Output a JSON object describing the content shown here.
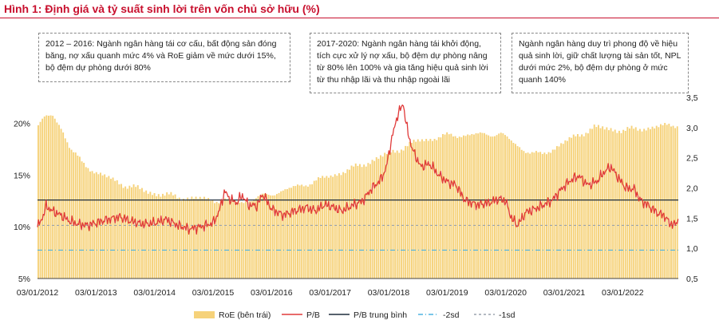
{
  "title": "Hình 1: Định giá và tỷ suất sinh lời trên vốn chủ sở hữu (%)",
  "notes": [
    "2012 – 2016: Ngành ngân hàng tái cơ cấu, bất động sản đóng băng, nợ xấu quanh mức 4% và RoE giảm về mức dưới 15%, bộ đệm dự phòng dưới 80%",
    "2017-2020: Ngành ngân hàng tái khởi động, tích cực xử lý nợ xấu, bộ đệm dự phòng nâng từ 80% lên 100% và gia tăng hiệu quả sinh lời từ thu nhập lãi và thu nhập ngoài lãi",
    "Ngành ngân hàng duy trì phong độ về hiệu quả sinh lời, giữ chất lượng tài sản tốt, NPL dưới mức 2%, bộ đệm dự phòng ở mức quanh 140%"
  ],
  "colors": {
    "roe": "#f6d27a",
    "pb": "#e03a3a",
    "avg": "#1f2d3d",
    "sd2": "#4fb3e0",
    "sd1": "#9aa3ad"
  },
  "chart_data": {
    "type": "bar",
    "x_ticks": [
      "03/01/2012",
      "03/01/2013",
      "03/01/2014",
      "03/01/2015",
      "03/01/2016",
      "03/01/2017",
      "03/01/2018",
      "03/01/2019",
      "03/01/2020",
      "03/01/2021",
      "03/01/2022"
    ],
    "left_axis": {
      "ticks": [
        "5%",
        "10%",
        "15%",
        "20%"
      ],
      "range": [
        5,
        22.5
      ]
    },
    "right_axis": {
      "ticks": [
        "0,5",
        "1,0",
        "1,5",
        "2,0",
        "2,5",
        "3,0",
        "3,5"
      ],
      "range": [
        0.5,
        3.5
      ]
    },
    "t_range": [
      2012.0,
      2022.95
    ],
    "roe": [
      [
        2012.0,
        19.8
      ],
      [
        2012.12,
        20.5
      ],
      [
        2012.25,
        20.8
      ],
      [
        2012.4,
        19.5
      ],
      [
        2012.55,
        17.5
      ],
      [
        2012.75,
        16.2
      ],
      [
        2013.0,
        15.2
      ],
      [
        2013.25,
        14.6
      ],
      [
        2013.5,
        14.0
      ],
      [
        2013.75,
        13.6
      ],
      [
        2014.0,
        13.2
      ],
      [
        2014.5,
        12.8
      ],
      [
        2015.0,
        12.6
      ],
      [
        2015.5,
        12.4
      ],
      [
        2016.0,
        13.2
      ],
      [
        2016.5,
        14.0
      ],
      [
        2017.0,
        14.9
      ],
      [
        2017.5,
        15.9
      ],
      [
        2018.0,
        17.1
      ],
      [
        2018.5,
        18.3
      ],
      [
        2019.0,
        18.8
      ],
      [
        2019.5,
        18.9
      ],
      [
        2019.9,
        19.0
      ],
      [
        2020.3,
        17.4
      ],
      [
        2020.6,
        16.9
      ],
      [
        2021.0,
        18.2
      ],
      [
        2021.5,
        19.6
      ],
      [
        2022.0,
        19.3
      ],
      [
        2022.5,
        19.6
      ],
      [
        2022.95,
        19.9
      ]
    ],
    "pb": [
      [
        2012.0,
        1.35
      ],
      [
        2012.08,
        1.5
      ],
      [
        2012.15,
        1.7
      ],
      [
        2012.25,
        1.62
      ],
      [
        2012.4,
        1.55
      ],
      [
        2012.55,
        1.45
      ],
      [
        2012.7,
        1.4
      ],
      [
        2012.85,
        1.38
      ],
      [
        2013.0,
        1.42
      ],
      [
        2013.2,
        1.48
      ],
      [
        2013.4,
        1.52
      ],
      [
        2013.6,
        1.45
      ],
      [
        2013.8,
        1.4
      ],
      [
        2014.0,
        1.42
      ],
      [
        2014.2,
        1.48
      ],
      [
        2014.4,
        1.38
      ],
      [
        2014.6,
        1.32
      ],
      [
        2014.8,
        1.36
      ],
      [
        2015.0,
        1.42
      ],
      [
        2015.1,
        1.6
      ],
      [
        2015.2,
        1.95
      ],
      [
        2015.28,
        1.82
      ],
      [
        2015.4,
        1.75
      ],
      [
        2015.5,
        1.88
      ],
      [
        2015.6,
        1.72
      ],
      [
        2015.75,
        1.7
      ],
      [
        2015.85,
        1.9
      ],
      [
        2016.0,
        1.65
      ],
      [
        2016.2,
        1.55
      ],
      [
        2016.4,
        1.62
      ],
      [
        2016.6,
        1.68
      ],
      [
        2016.75,
        1.62
      ],
      [
        2016.9,
        1.72
      ],
      [
        2017.0,
        1.7
      ],
      [
        2017.2,
        1.62
      ],
      [
        2017.4,
        1.72
      ],
      [
        2017.55,
        1.78
      ],
      [
        2017.7,
        1.98
      ],
      [
        2017.85,
        2.12
      ],
      [
        2017.95,
        2.3
      ],
      [
        2018.05,
        2.8
      ],
      [
        2018.15,
        3.2
      ],
      [
        2018.25,
        3.4
      ],
      [
        2018.3,
        3.05
      ],
      [
        2018.4,
        2.65
      ],
      [
        2018.55,
        2.35
      ],
      [
        2018.7,
        2.4
      ],
      [
        2018.85,
        2.22
      ],
      [
        2019.0,
        2.1
      ],
      [
        2019.15,
        2.05
      ],
      [
        2019.3,
        1.8
      ],
      [
        2019.5,
        1.72
      ],
      [
        2019.7,
        1.75
      ],
      [
        2019.9,
        1.82
      ],
      [
        2020.0,
        1.78
      ],
      [
        2020.1,
        1.5
      ],
      [
        2020.2,
        1.38
      ],
      [
        2020.35,
        1.6
      ],
      [
        2020.5,
        1.65
      ],
      [
        2020.65,
        1.72
      ],
      [
        2020.8,
        1.8
      ],
      [
        2020.95,
        1.98
      ],
      [
        2021.1,
        2.12
      ],
      [
        2021.25,
        2.2
      ],
      [
        2021.4,
        2.05
      ],
      [
        2021.55,
        2.1
      ],
      [
        2021.7,
        2.28
      ],
      [
        2021.8,
        2.35
      ],
      [
        2021.9,
        2.2
      ],
      [
        2022.05,
        2.0
      ],
      [
        2022.2,
        1.98
      ],
      [
        2022.3,
        1.8
      ],
      [
        2022.45,
        1.7
      ],
      [
        2022.6,
        1.58
      ],
      [
        2022.7,
        1.55
      ],
      [
        2022.8,
        1.42
      ],
      [
        2022.9,
        1.38
      ],
      [
        2022.95,
        1.52
      ]
    ],
    "pb_avg": 1.8,
    "minus_2sd": 0.97,
    "minus_1sd": 1.38,
    "legend": [
      "RoE (bên trái)",
      "P/B",
      "P/B trung bình",
      "-2sd",
      "-1sd"
    ]
  }
}
